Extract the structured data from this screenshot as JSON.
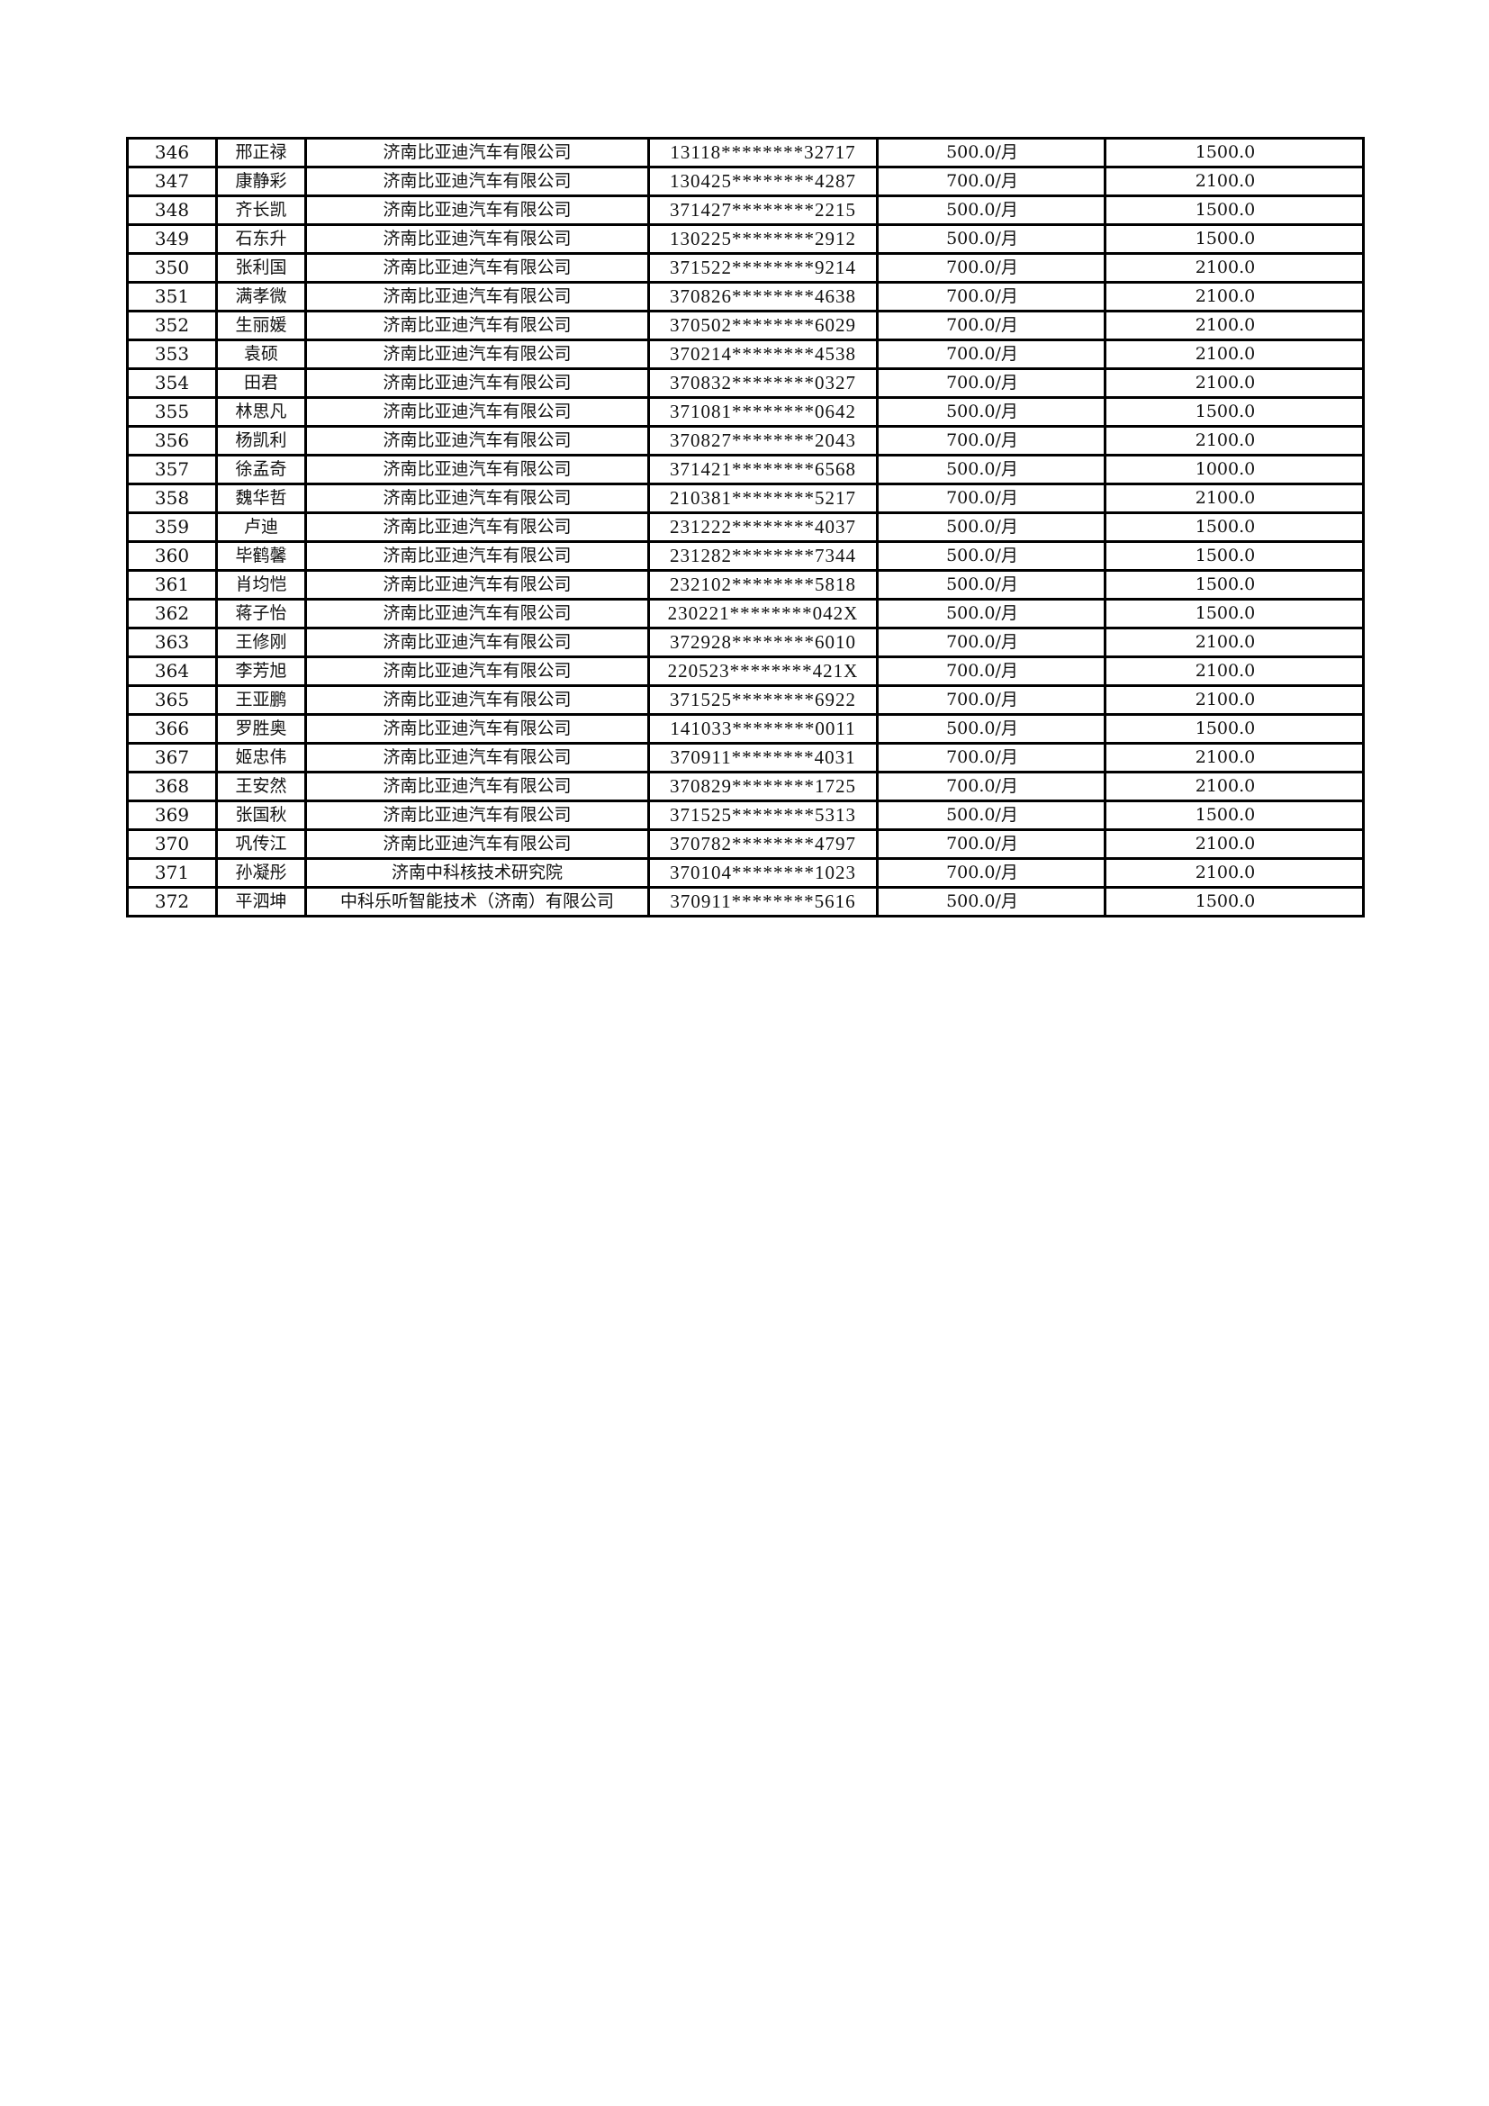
{
  "rows": [
    [
      "346",
      "邢正禄",
      "济南比亚迪汽车有限公司",
      "13118********32717",
      "500.0/月",
      "1500.0"
    ],
    [
      "347",
      "康静彩",
      "济南比亚迪汽车有限公司",
      "130425********4287",
      "700.0/月",
      "2100.0"
    ],
    [
      "348",
      "齐长凯",
      "济南比亚迪汽车有限公司",
      "371427********2215",
      "500.0/月",
      "1500.0"
    ],
    [
      "349",
      "石东升",
      "济南比亚迪汽车有限公司",
      "130225********2912",
      "500.0/月",
      "1500.0"
    ],
    [
      "350",
      "张利国",
      "济南比亚迪汽车有限公司",
      "371522********9214",
      "700.0/月",
      "2100.0"
    ],
    [
      "351",
      "满孝微",
      "济南比亚迪汽车有限公司",
      "370826********4638",
      "700.0/月",
      "2100.0"
    ],
    [
      "352",
      "生丽媛",
      "济南比亚迪汽车有限公司",
      "370502********6029",
      "700.0/月",
      "2100.0"
    ],
    [
      "353",
      "袁硕",
      "济南比亚迪汽车有限公司",
      "370214********4538",
      "700.0/月",
      "2100.0"
    ],
    [
      "354",
      "田君",
      "济南比亚迪汽车有限公司",
      "370832********0327",
      "700.0/月",
      "2100.0"
    ],
    [
      "355",
      "林思凡",
      "济南比亚迪汽车有限公司",
      "371081********0642",
      "500.0/月",
      "1500.0"
    ],
    [
      "356",
      "杨凯利",
      "济南比亚迪汽车有限公司",
      "370827********2043",
      "700.0/月",
      "2100.0"
    ],
    [
      "357",
      "徐孟奇",
      "济南比亚迪汽车有限公司",
      "371421********6568",
      "500.0/月",
      "1000.0"
    ],
    [
      "358",
      "魏华哲",
      "济南比亚迪汽车有限公司",
      "210381********5217",
      "700.0/月",
      "2100.0"
    ],
    [
      "359",
      "卢迪",
      "济南比亚迪汽车有限公司",
      "231222********4037",
      "500.0/月",
      "1500.0"
    ],
    [
      "360",
      "毕鹤馨",
      "济南比亚迪汽车有限公司",
      "231282********7344",
      "500.0/月",
      "1500.0"
    ],
    [
      "361",
      "肖均恺",
      "济南比亚迪汽车有限公司",
      "232102********5818",
      "500.0/月",
      "1500.0"
    ],
    [
      "362",
      "蒋子怡",
      "济南比亚迪汽车有限公司",
      "230221********042X",
      "500.0/月",
      "1500.0"
    ],
    [
      "363",
      "王修刚",
      "济南比亚迪汽车有限公司",
      "372928********6010",
      "700.0/月",
      "2100.0"
    ],
    [
      "364",
      "李芳旭",
      "济南比亚迪汽车有限公司",
      "220523********421X",
      "700.0/月",
      "2100.0"
    ],
    [
      "365",
      "王亚鹏",
      "济南比亚迪汽车有限公司",
      "371525********6922",
      "700.0/月",
      "2100.0"
    ],
    [
      "366",
      "罗胜奥",
      "济南比亚迪汽车有限公司",
      "141033********0011",
      "500.0/月",
      "1500.0"
    ],
    [
      "367",
      "姬忠伟",
      "济南比亚迪汽车有限公司",
      "370911********4031",
      "700.0/月",
      "2100.0"
    ],
    [
      "368",
      "王安然",
      "济南比亚迪汽车有限公司",
      "370829********1725",
      "700.0/月",
      "2100.0"
    ],
    [
      "369",
      "张国秋",
      "济南比亚迪汽车有限公司",
      "371525********5313",
      "500.0/月",
      "1500.0"
    ],
    [
      "370",
      "巩传江",
      "济南比亚迪汽车有限公司",
      "370782********4797",
      "700.0/月",
      "2100.0"
    ],
    [
      "371",
      "孙凝彤",
      "济南中科核技术研究院",
      "370104********1023",
      "700.0/月",
      "2100.0"
    ],
    [
      "372",
      "平泗坤",
      "中科乐听智能技术（济南）有限公司",
      "370911********5616",
      "500.0/月",
      "1500.0"
    ]
  ]
}
